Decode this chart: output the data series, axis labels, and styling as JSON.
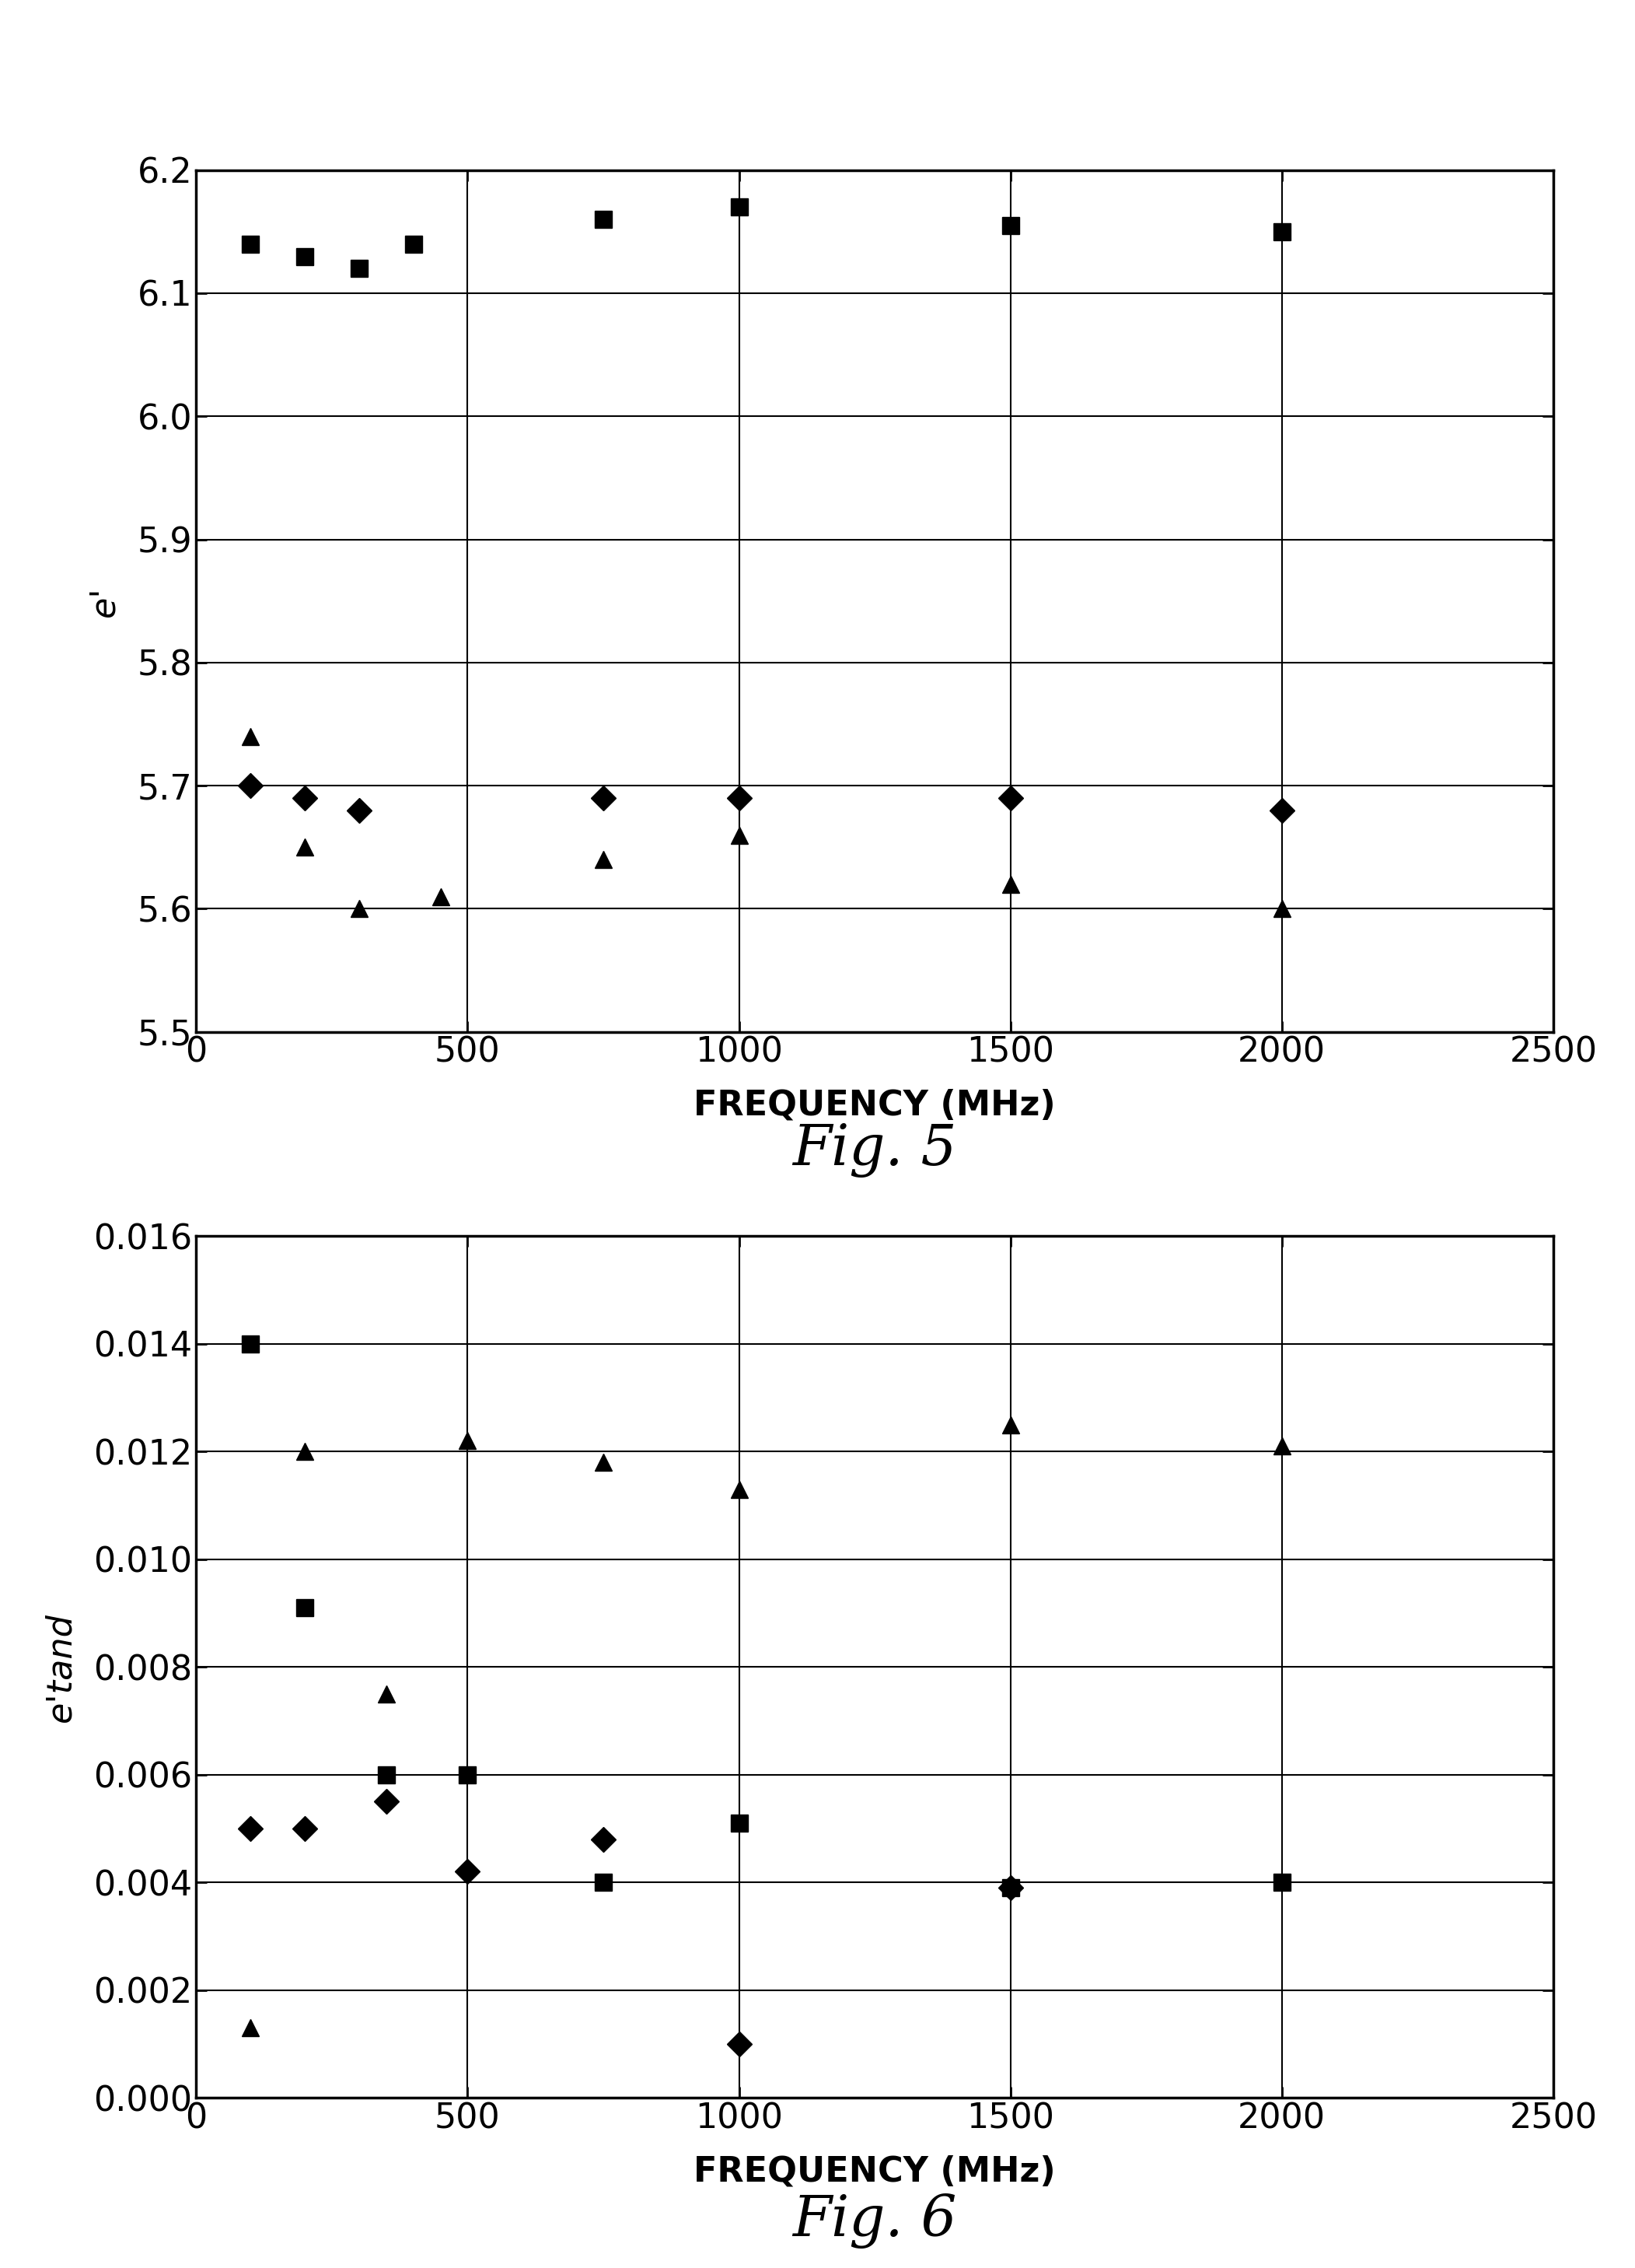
{
  "fig5": {
    "title": "Fig. 5",
    "xlabel": "FREQUENCY (MHz)",
    "ylabel": "e'",
    "xlim": [
      0,
      2500
    ],
    "ylim": [
      5.5,
      6.2
    ],
    "yticks": [
      5.5,
      5.6,
      5.7,
      5.8,
      5.9,
      6.0,
      6.1,
      6.2
    ],
    "xticks": [
      0,
      500,
      1000,
      1500,
      2000,
      2500
    ],
    "squares": {
      "x": [
        100,
        200,
        300,
        400,
        750,
        1000,
        1500,
        2000
      ],
      "y": [
        6.14,
        6.13,
        6.12,
        6.14,
        6.16,
        6.17,
        6.155,
        6.15
      ]
    },
    "diamonds": {
      "x": [
        100,
        200,
        300,
        750,
        1000,
        1500,
        2000
      ],
      "y": [
        5.7,
        5.69,
        5.68,
        5.69,
        5.69,
        5.69,
        5.68
      ]
    },
    "triangles": {
      "x": [
        100,
        200,
        300,
        450,
        750,
        1000,
        1500,
        2000
      ],
      "y": [
        5.74,
        5.65,
        5.6,
        5.61,
        5.64,
        5.66,
        5.62,
        5.6
      ]
    }
  },
  "fig6": {
    "title": "Fig. 6",
    "xlabel": "FREQUENCY (MHz)",
    "ylabel": "e'tand",
    "xlim": [
      0,
      2500
    ],
    "ylim": [
      0.0,
      0.016
    ],
    "yticks": [
      0.0,
      0.002,
      0.004,
      0.006,
      0.008,
      0.01,
      0.012,
      0.014,
      0.016
    ],
    "xticks": [
      0,
      500,
      1000,
      1500,
      2000,
      2500
    ],
    "squares": {
      "x": [
        100,
        200,
        350,
        500,
        750,
        1000,
        1500,
        2000
      ],
      "y": [
        0.014,
        0.0091,
        0.006,
        0.006,
        0.004,
        0.0051,
        0.0039,
        0.004
      ]
    },
    "diamonds": {
      "x": [
        100,
        200,
        350,
        500,
        750,
        1000,
        1500
      ],
      "y": [
        0.005,
        0.005,
        0.0055,
        0.0042,
        0.0048,
        0.001,
        0.0039
      ]
    },
    "triangles": {
      "x": [
        100,
        200,
        350,
        500,
        750,
        1000,
        1500,
        2000
      ],
      "y": [
        0.0013,
        0.012,
        0.0075,
        0.0122,
        0.0118,
        0.0113,
        0.0125,
        0.0121
      ]
    }
  },
  "background_color": "#ffffff",
  "tick_labelsize": 32,
  "axis_labelsize": 32,
  "caption_fontsize": 52,
  "marker_size": 16,
  "spine_linewidth": 2.5,
  "grid_linewidth": 1.5
}
